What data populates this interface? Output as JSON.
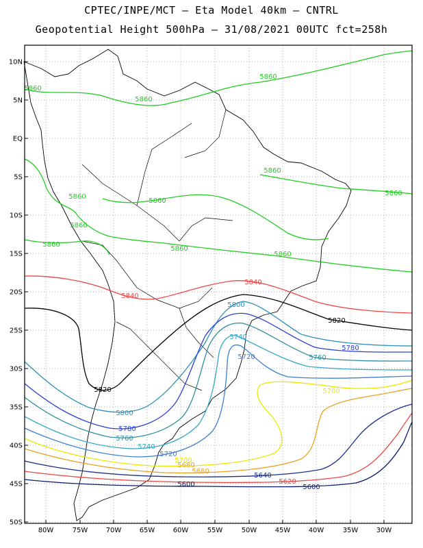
{
  "header": {
    "line1": "CPTEC/INPE/MCT  –  Eta Model 40km  –  CNTRL",
    "line2": "Geopotential Height 500hPa – 31/08/2021 00UTC fct=258h"
  },
  "map": {
    "lat_labels": [
      "10N",
      "5N",
      "EQ",
      "5S",
      "10S",
      "15S",
      "20S",
      "25S",
      "30S",
      "35S",
      "40S",
      "45S",
      "50S"
    ],
    "lon_labels": [
      "80W",
      "75W",
      "70W",
      "65W",
      "60W",
      "55W",
      "50W",
      "45W",
      "40W",
      "35W",
      "30W"
    ],
    "gridlines": true
  },
  "contours": [
    {
      "value": "5860",
      "color": "#22cc22"
    },
    {
      "value": "5840",
      "color": "#ee4444"
    },
    {
      "value": "5820",
      "color": "#000000"
    },
    {
      "value": "5800",
      "color": "#2a8fb8"
    },
    {
      "value": "5780",
      "color": "#2a3fd6"
    },
    {
      "value": "5760",
      "color": "#2f8fa0"
    },
    {
      "value": "5740",
      "color": "#35a7c8"
    },
    {
      "value": "5720",
      "color": "#3a7fd0"
    },
    {
      "value": "5700",
      "color": "#e8e800"
    },
    {
      "value": "5680",
      "color": "#e8a020"
    },
    {
      "value": "5640",
      "color": "#1a2f8a"
    },
    {
      "value": "5620",
      "color": "#ee4444"
    },
    {
      "value": "5600",
      "color": "#0a1a6a"
    }
  ]
}
